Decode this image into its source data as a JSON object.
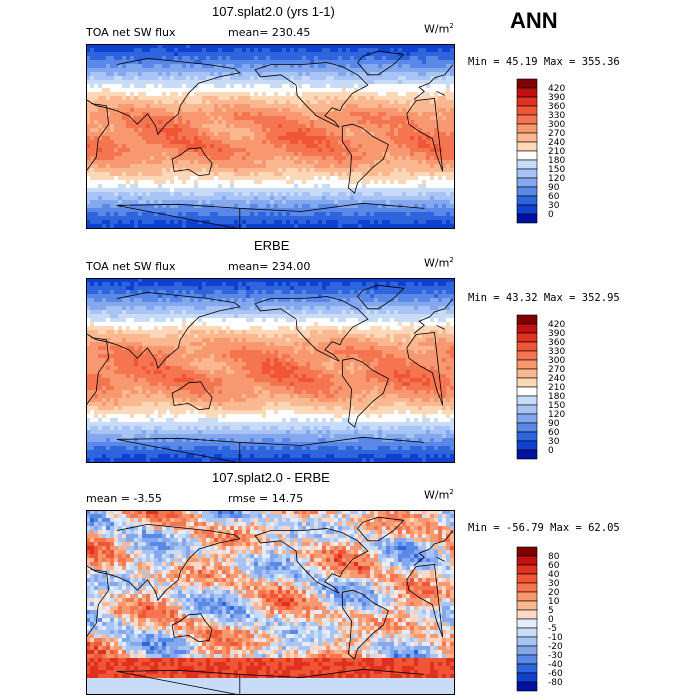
{
  "season": "ANN",
  "panels": [
    {
      "title": "107.splat2.0 (yrs 1-1)",
      "left_label": "TOA net SW flux",
      "mean_label": "mean= 230.45",
      "units_base": "W/m",
      "units_exp": "2",
      "minmax": "Min =  45.19 Max = 355.36",
      "field": "sw",
      "colorbar_levels": [
        "420",
        "390",
        "360",
        "330",
        "300",
        "270",
        "240",
        "210",
        "180",
        "150",
        "120",
        "90",
        "60",
        "30",
        "0"
      ],
      "colorbar_colors": [
        "#800000",
        "#c01010",
        "#e03020",
        "#f05535",
        "#f57550",
        "#f89870",
        "#fab890",
        "#fdd8b8",
        "#ffffff",
        "#c8dcf8",
        "#a8c4f4",
        "#84a8ee",
        "#5a88e6",
        "#2e64dc",
        "#1040d0",
        "#0010a0"
      ]
    },
    {
      "title": "ERBE",
      "left_label": "TOA net SW flux",
      "mean_label": "mean= 234.00",
      "units_base": "W/m",
      "units_exp": "2",
      "minmax": "Min =  43.32 Max = 352.95",
      "field": "sw",
      "colorbar_levels": [
        "420",
        "390",
        "360",
        "330",
        "300",
        "270",
        "240",
        "210",
        "180",
        "150",
        "120",
        "90",
        "60",
        "30",
        "0"
      ],
      "colorbar_colors": [
        "#800000",
        "#c01010",
        "#e03020",
        "#f05535",
        "#f57550",
        "#f89870",
        "#fab890",
        "#fdd8b8",
        "#ffffff",
        "#c8dcf8",
        "#a8c4f4",
        "#84a8ee",
        "#5a88e6",
        "#2e64dc",
        "#1040d0",
        "#0010a0"
      ]
    },
    {
      "title": "107.splat2.0 - ERBE",
      "left_label": "mean =   -3.55",
      "mean_label": "rmse =   14.75",
      "units_base": "W/m",
      "units_exp": "2",
      "minmax": "Min = -56.79 Max =  62.05",
      "field": "diff",
      "colorbar_levels": [
        "80",
        "60",
        "40",
        "30",
        "20",
        "10",
        "5",
        "0",
        "-5",
        "-10",
        "-20",
        "-30",
        "-40",
        "-60",
        "-80"
      ],
      "colorbar_colors": [
        "#800000",
        "#c01010",
        "#e03020",
        "#f05535",
        "#f57550",
        "#f89870",
        "#fab890",
        "#fdd8c8",
        "#e4ecfa",
        "#c8dcf8",
        "#a8c4f4",
        "#84a8ee",
        "#5a88e6",
        "#2e64dc",
        "#1040d0",
        "#0010a0"
      ]
    }
  ]
}
